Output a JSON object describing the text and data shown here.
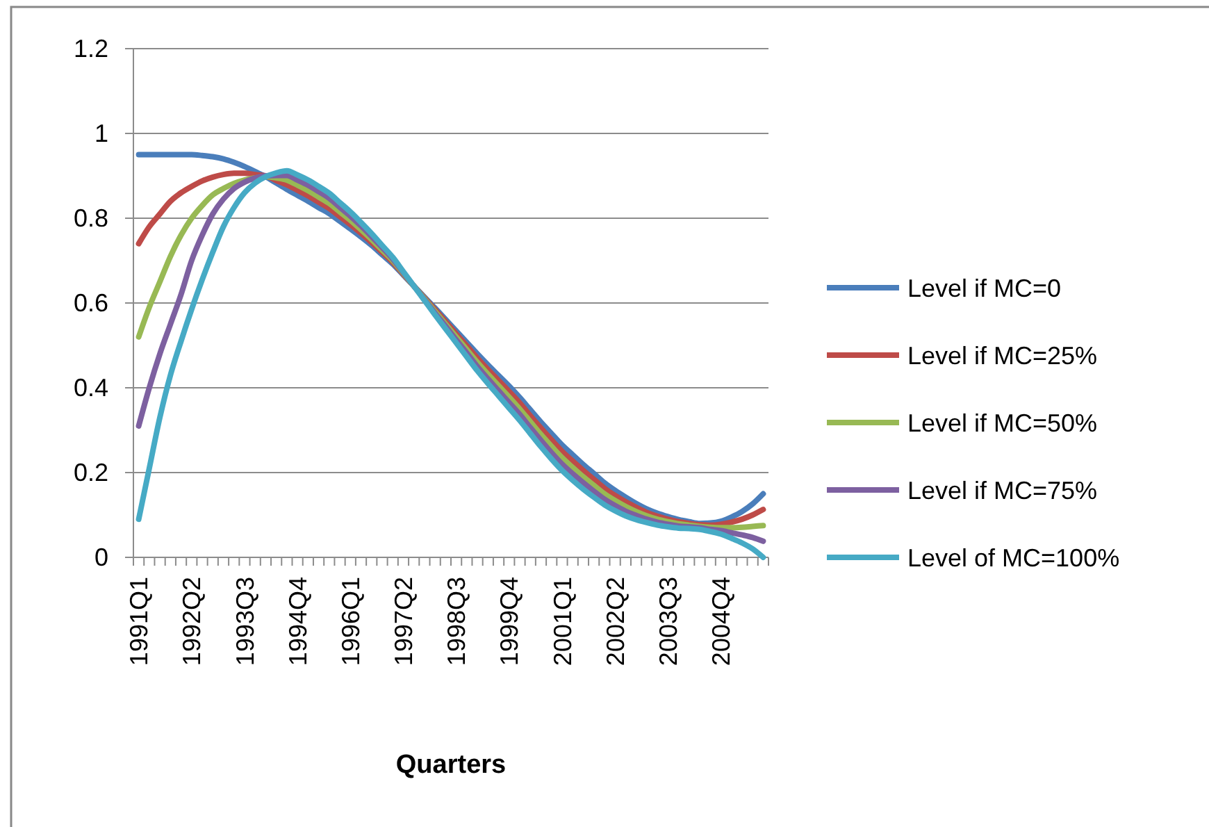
{
  "chart_data": {
    "type": "line",
    "xlabel": "Quarters",
    "categories": [
      "1991Q1",
      null,
      null,
      null,
      null,
      "1992Q2",
      null,
      null,
      null,
      null,
      "1993Q3",
      null,
      null,
      null,
      null,
      "1994Q4",
      null,
      null,
      null,
      null,
      "1996Q1",
      null,
      null,
      null,
      null,
      "1997Q2",
      null,
      null,
      null,
      null,
      "1998Q3",
      null,
      null,
      null,
      null,
      "1999Q4",
      null,
      null,
      null,
      null,
      "2001Q1",
      null,
      null,
      null,
      null,
      "2002Q2",
      null,
      null,
      null,
      null,
      "2003Q3",
      null,
      null,
      null,
      null,
      "2004Q4",
      null,
      null,
      null,
      null
    ],
    "ylim": [
      0,
      1.2
    ],
    "yticks": [
      0,
      0.2,
      0.4,
      0.6,
      0.8,
      1,
      1.2
    ],
    "grid": "y",
    "legend": "right",
    "marker": "none",
    "line_style": "solid",
    "series": [
      {
        "name": "Level if MC=0",
        "color": "#4a7ebb",
        "values": [
          0.95,
          0.95,
          0.95,
          0.95,
          0.95,
          0.95,
          0.948,
          0.945,
          0.94,
          0.932,
          0.922,
          0.91,
          0.898,
          0.883,
          0.868,
          0.854,
          0.84,
          0.825,
          0.811,
          0.793,
          0.775,
          0.756,
          0.736,
          0.714,
          0.692,
          0.666,
          0.64,
          0.614,
          0.588,
          0.561,
          0.534,
          0.507,
          0.48,
          0.454,
          0.429,
          0.404,
          0.377,
          0.348,
          0.319,
          0.292,
          0.265,
          0.242,
          0.219,
          0.198,
          0.176,
          0.158,
          0.142,
          0.127,
          0.114,
          0.104,
          0.096,
          0.089,
          0.084,
          0.08,
          0.081,
          0.085,
          0.095,
          0.108,
          0.126,
          0.15
        ]
      },
      {
        "name": "Level if MC=25%",
        "color": "#be4b48",
        "values": [
          0.74,
          0.78,
          0.81,
          0.84,
          0.86,
          0.875,
          0.888,
          0.897,
          0.903,
          0.906,
          0.906,
          0.903,
          0.9,
          0.889,
          0.879,
          0.866,
          0.853,
          0.838,
          0.823,
          0.804,
          0.785,
          0.765,
          0.743,
          0.72,
          0.696,
          0.668,
          0.64,
          0.612,
          0.584,
          0.556,
          0.527,
          0.499,
          0.47,
          0.443,
          0.417,
          0.391,
          0.364,
          0.334,
          0.305,
          0.277,
          0.25,
          0.227,
          0.205,
          0.184,
          0.163,
          0.146,
          0.131,
          0.118,
          0.106,
          0.097,
          0.09,
          0.084,
          0.08,
          0.077,
          0.076,
          0.078,
          0.083,
          0.09,
          0.1,
          0.113
        ]
      },
      {
        "name": "Level if MC=50%",
        "color": "#98b954",
        "values": [
          0.52,
          0.59,
          0.65,
          0.71,
          0.76,
          0.8,
          0.83,
          0.855,
          0.87,
          0.882,
          0.89,
          0.895,
          0.898,
          0.895,
          0.89,
          0.878,
          0.865,
          0.85,
          0.835,
          0.815,
          0.795,
          0.773,
          0.75,
          0.725,
          0.7,
          0.67,
          0.64,
          0.61,
          0.58,
          0.55,
          0.52,
          0.49,
          0.46,
          0.432,
          0.405,
          0.378,
          0.35,
          0.32,
          0.29,
          0.262,
          0.235,
          0.212,
          0.19,
          0.17,
          0.15,
          0.134,
          0.12,
          0.108,
          0.098,
          0.09,
          0.084,
          0.079,
          0.076,
          0.073,
          0.071,
          0.07,
          0.07,
          0.071,
          0.073,
          0.075
        ]
      },
      {
        "name": "Level if MC=75%",
        "color": "#7d60a0",
        "values": [
          0.31,
          0.4,
          0.48,
          0.55,
          0.62,
          0.7,
          0.76,
          0.81,
          0.845,
          0.87,
          0.885,
          0.895,
          0.9,
          0.901,
          0.901,
          0.89,
          0.878,
          0.863,
          0.847,
          0.826,
          0.805,
          0.782,
          0.757,
          0.731,
          0.704,
          0.672,
          0.64,
          0.608,
          0.576,
          0.545,
          0.513,
          0.482,
          0.45,
          0.421,
          0.393,
          0.365,
          0.337,
          0.306,
          0.276,
          0.247,
          0.22,
          0.197,
          0.176,
          0.156,
          0.137,
          0.122,
          0.109,
          0.099,
          0.09,
          0.083,
          0.078,
          0.074,
          0.072,
          0.07,
          0.066,
          0.063,
          0.058,
          0.053,
          0.047,
          0.038
        ]
      },
      {
        "name": "Level of MC=100%",
        "color": "#46aac5",
        "values": [
          0.09,
          0.21,
          0.33,
          0.43,
          0.51,
          0.585,
          0.655,
          0.72,
          0.78,
          0.825,
          0.86,
          0.883,
          0.898,
          0.907,
          0.912,
          0.902,
          0.89,
          0.875,
          0.859,
          0.837,
          0.815,
          0.79,
          0.764,
          0.736,
          0.708,
          0.674,
          0.64,
          0.606,
          0.572,
          0.539,
          0.506,
          0.473,
          0.44,
          0.41,
          0.381,
          0.352,
          0.323,
          0.292,
          0.261,
          0.232,
          0.205,
          0.182,
          0.161,
          0.142,
          0.124,
          0.11,
          0.098,
          0.089,
          0.082,
          0.076,
          0.072,
          0.069,
          0.068,
          0.066,
          0.061,
          0.055,
          0.045,
          0.034,
          0.02,
          0
        ]
      }
    ]
  }
}
